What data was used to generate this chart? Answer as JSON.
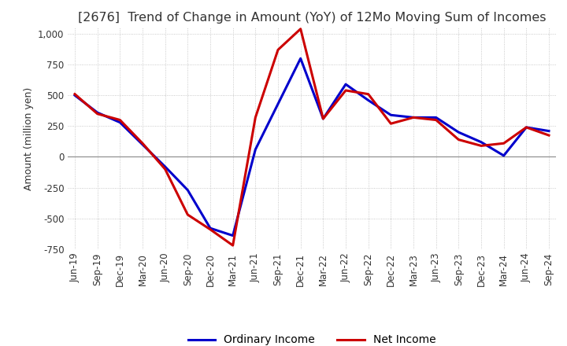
{
  "title": "[2676]  Trend of Change in Amount (YoY) of 12Mo Moving Sum of Incomes",
  "ylabel": "Amount (million yen)",
  "ylim": [
    -750,
    1050
  ],
  "yticks": [
    -750,
    -500,
    -250,
    0,
    250,
    500,
    750,
    1000
  ],
  "x_labels": [
    "Jun-19",
    "Sep-19",
    "Dec-19",
    "Mar-20",
    "Jun-20",
    "Sep-20",
    "Dec-20",
    "Mar-21",
    "Jun-21",
    "Sep-21",
    "Dec-21",
    "Mar-22",
    "Jun-22",
    "Sep-22",
    "Dec-22",
    "Mar-23",
    "Jun-23",
    "Sep-23",
    "Dec-23",
    "Mar-24",
    "Jun-24",
    "Sep-24"
  ],
  "ordinary_income": [
    500,
    360,
    280,
    100,
    -80,
    -270,
    -580,
    -640,
    60,
    430,
    800,
    310,
    590,
    460,
    340,
    320,
    320,
    200,
    120,
    10,
    240,
    210
  ],
  "net_income": [
    510,
    350,
    300,
    110,
    -100,
    -470,
    -590,
    -720,
    320,
    870,
    1040,
    310,
    540,
    510,
    270,
    320,
    300,
    140,
    90,
    110,
    240,
    175
  ],
  "ordinary_color": "#0000cc",
  "net_color": "#cc0000",
  "line_width": 2.2,
  "background_color": "#ffffff",
  "grid_color": "#bbbbbb",
  "title_color": "#333333",
  "title_fontsize": 11.5,
  "label_fontsize": 9,
  "tick_fontsize": 8.5,
  "legend_fontsize": 10
}
